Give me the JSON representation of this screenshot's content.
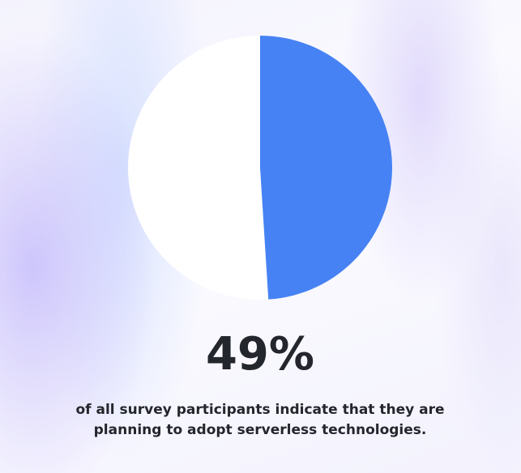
{
  "chart_data": {
    "type": "pie",
    "values": [
      49
    ],
    "value_labels": [
      "49%"
    ],
    "color": "#4682f4",
    "note": [
      "of all survey participants indicate that they are",
      "planning to adopt serverless technologies."
    ]
  }
}
